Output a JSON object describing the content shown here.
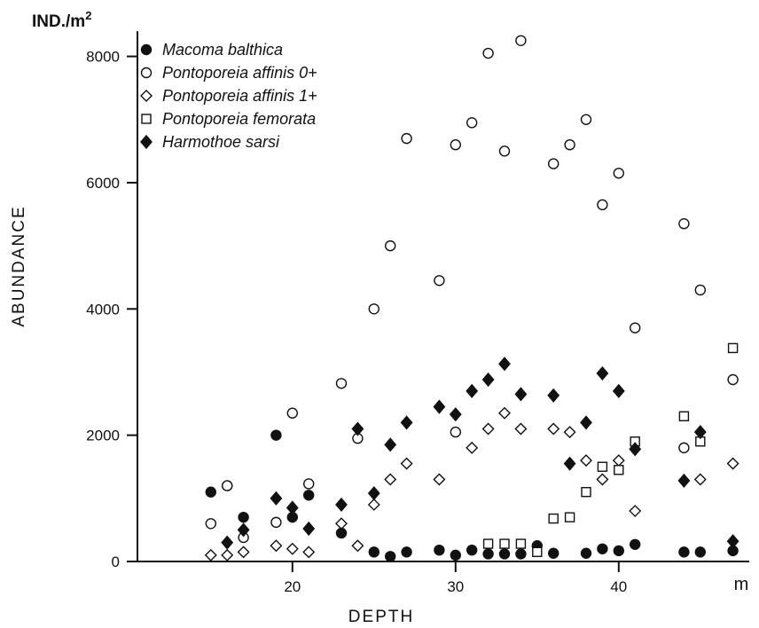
{
  "chart_data": {
    "type": "scatter",
    "title": "",
    "xlabel": "DEPTH",
    "ylabel": "ABUNDANCE",
    "y_unit_label": "IND./m",
    "y_unit_superscript": "2",
    "x_unit_label": "m",
    "xlim": [
      10.5,
      48
    ],
    "ylim": [
      0,
      8500
    ],
    "x_ticks": [
      20,
      30,
      40
    ],
    "y_ticks": [
      0,
      2000,
      4000,
      6000,
      8000
    ],
    "x_tick_labels": [
      "20",
      "30",
      "40"
    ],
    "y_tick_labels": [
      "0",
      "2000",
      "4000",
      "6000",
      "8000"
    ],
    "grid": false,
    "legend_position": "top-left",
    "series": [
      {
        "name": "Macoma balthica",
        "marker": "filled-circle",
        "points": [
          [
            15,
            1100
          ],
          [
            16,
            1200
          ],
          [
            17,
            700
          ],
          [
            19,
            2000
          ],
          [
            20,
            700
          ],
          [
            21,
            1050
          ],
          [
            23,
            450
          ],
          [
            25,
            150
          ],
          [
            26,
            80
          ],
          [
            27,
            150
          ],
          [
            29,
            180
          ],
          [
            30,
            100
          ],
          [
            31,
            180
          ],
          [
            32,
            120
          ],
          [
            33,
            120
          ],
          [
            34,
            120
          ],
          [
            35,
            250
          ],
          [
            36,
            130
          ],
          [
            38,
            130
          ],
          [
            39,
            200
          ],
          [
            40,
            170
          ],
          [
            41,
            270
          ],
          [
            44,
            150
          ],
          [
            45,
            150
          ],
          [
            47,
            170
          ]
        ]
      },
      {
        "name": "Pontoporeia affinis 0+",
        "marker": "open-circle",
        "points": [
          [
            15,
            600
          ],
          [
            16,
            1200
          ],
          [
            17,
            380
          ],
          [
            19,
            620
          ],
          [
            20,
            2350
          ],
          [
            21,
            1230
          ],
          [
            23,
            2820
          ],
          [
            24,
            1950
          ],
          [
            25,
            4000
          ],
          [
            26,
            5000
          ],
          [
            27,
            6700
          ],
          [
            29,
            4450
          ],
          [
            30,
            6600
          ],
          [
            30,
            2050
          ],
          [
            31,
            6950
          ],
          [
            32,
            8050
          ],
          [
            33,
            6500
          ],
          [
            34,
            8250
          ],
          [
            36,
            6300
          ],
          [
            37,
            6600
          ],
          [
            38,
            7000
          ],
          [
            39,
            5650
          ],
          [
            40,
            6150
          ],
          [
            41,
            3700
          ],
          [
            44,
            5350
          ],
          [
            44,
            1800
          ],
          [
            45,
            4300
          ],
          [
            47,
            2880
          ]
        ]
      },
      {
        "name": "Pontoporeia affinis 1+",
        "marker": "open-diamond",
        "points": [
          [
            15,
            100
          ],
          [
            16,
            100
          ],
          [
            17,
            150
          ],
          [
            19,
            250
          ],
          [
            20,
            200
          ],
          [
            21,
            150
          ],
          [
            23,
            600
          ],
          [
            24,
            250
          ],
          [
            25,
            900
          ],
          [
            26,
            1300
          ],
          [
            27,
            1550
          ],
          [
            29,
            1300
          ],
          [
            31,
            1800
          ],
          [
            32,
            2100
          ],
          [
            33,
            2350
          ],
          [
            34,
            2100
          ],
          [
            36,
            2100
          ],
          [
            37,
            2050
          ],
          [
            38,
            1600
          ],
          [
            39,
            1300
          ],
          [
            40,
            1600
          ],
          [
            41,
            800
          ],
          [
            45,
            1300
          ],
          [
            47,
            1550
          ]
        ]
      },
      {
        "name": "Pontoporeia femorata",
        "marker": "open-square",
        "points": [
          [
            32,
            280
          ],
          [
            33,
            280
          ],
          [
            34,
            280
          ],
          [
            35,
            150
          ],
          [
            36,
            680
          ],
          [
            37,
            700
          ],
          [
            38,
            1100
          ],
          [
            39,
            1500
          ],
          [
            40,
            1450
          ],
          [
            41,
            1900
          ],
          [
            44,
            2300
          ],
          [
            45,
            1900
          ],
          [
            47,
            3380
          ]
        ]
      },
      {
        "name": "Harmothoe sarsi",
        "marker": "filled-diamond",
        "points": [
          [
            16,
            300
          ],
          [
            17,
            500
          ],
          [
            19,
            1000
          ],
          [
            20,
            850
          ],
          [
            21,
            520
          ],
          [
            23,
            900
          ],
          [
            24,
            2100
          ],
          [
            25,
            1080
          ],
          [
            26,
            1850
          ],
          [
            27,
            2200
          ],
          [
            29,
            2450
          ],
          [
            30,
            2330
          ],
          [
            31,
            2700
          ],
          [
            32,
            2880
          ],
          [
            33,
            3130
          ],
          [
            34,
            2650
          ],
          [
            36,
            2630
          ],
          [
            37,
            1550
          ],
          [
            38,
            2200
          ],
          [
            39,
            2980
          ],
          [
            40,
            2700
          ],
          [
            41,
            1780
          ],
          [
            44,
            1280
          ],
          [
            45,
            2050
          ],
          [
            47,
            320
          ]
        ]
      }
    ]
  }
}
